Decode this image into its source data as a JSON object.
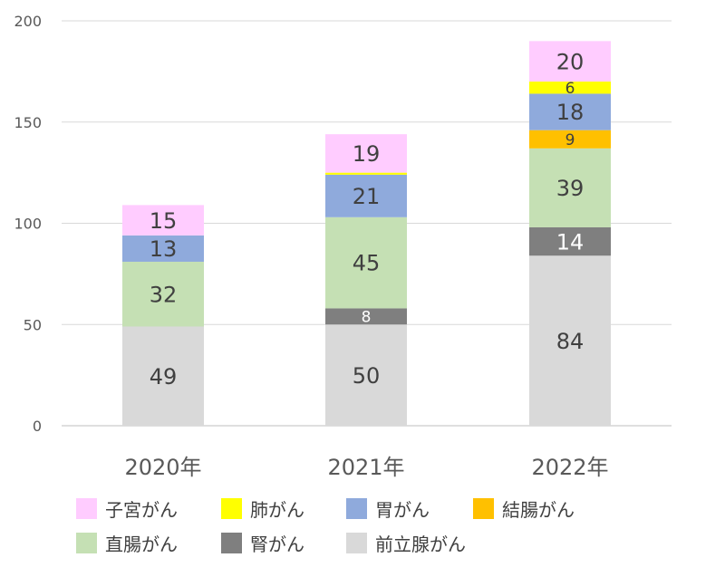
{
  "chart_data": {
    "type": "bar",
    "stacked": true,
    "categories": [
      "2020年",
      "2021年",
      "2022年"
    ],
    "ylim": [
      0,
      200
    ],
    "yticks": [
      0,
      50,
      100,
      150,
      200
    ],
    "grid": true,
    "legend_position": "bottom",
    "series": [
      {
        "name": "前立腺がん",
        "color": "#d9d9d9",
        "values": [
          49,
          50,
          84
        ],
        "labels": [
          "49",
          "50",
          "84"
        ],
        "label_color": "#404040"
      },
      {
        "name": "腎がん",
        "color": "#7f7f7f",
        "values": [
          0,
          8,
          14
        ],
        "labels": [
          "",
          "8",
          "14"
        ],
        "label_color": "#ffffff"
      },
      {
        "name": "直腸がん",
        "color": "#c5e0b4",
        "values": [
          32,
          45,
          39
        ],
        "labels": [
          "32",
          "45",
          "39"
        ],
        "label_color": "#404040"
      },
      {
        "name": "結腸がん",
        "color": "#ffc000",
        "values": [
          0,
          0,
          9
        ],
        "labels": [
          "",
          "",
          "9"
        ],
        "label_color": "#404040"
      },
      {
        "name": "胃がん",
        "color": "#8faadc",
        "values": [
          13,
          21,
          18
        ],
        "labels": [
          "13",
          "21",
          "18"
        ],
        "label_color": "#404040"
      },
      {
        "name": "肺がん",
        "color": "#ffff00",
        "values": [
          0,
          1,
          6
        ],
        "labels": [
          "",
          "",
          "6"
        ],
        "label_color": "#404040"
      },
      {
        "name": "子宮がん",
        "color": "#ffccff",
        "values": [
          15,
          19,
          20
        ],
        "labels": [
          "15",
          "19",
          "20"
        ],
        "label_color": "#404040"
      }
    ]
  },
  "legend": {
    "row1": [
      {
        "label": "子宮がん",
        "color": "#ffccff"
      },
      {
        "label": "肺がん",
        "color": "#ffff00"
      },
      {
        "label": "胃がん",
        "color": "#8faadc"
      },
      {
        "label": "結腸がん",
        "color": "#ffc000"
      }
    ],
    "row2": [
      {
        "label": "直腸がん",
        "color": "#c5e0b4"
      },
      {
        "label": "腎がん",
        "color": "#7f7f7f"
      },
      {
        "label": "前立腺がん",
        "color": "#d9d9d9"
      }
    ]
  }
}
